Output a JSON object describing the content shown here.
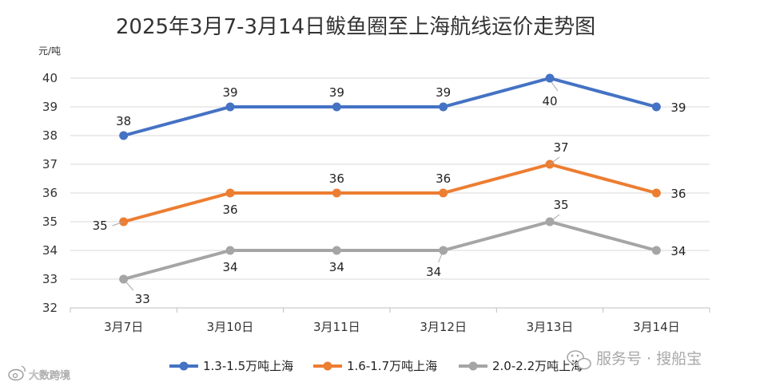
{
  "chart_data": {
    "type": "line",
    "title": "2025年3月7-3月14日鲅鱼圈至上海航线运价走势图",
    "ylabel": "元/吨",
    "xlabel": "",
    "categories": [
      "3月7日",
      "3月10日",
      "3月11日",
      "3月12日",
      "3月13日",
      "3月14日"
    ],
    "ylim": [
      32,
      40
    ],
    "yticks": [
      32,
      33,
      34,
      35,
      36,
      37,
      38,
      39,
      40
    ],
    "grid": true,
    "legend_position": "bottom",
    "series": [
      {
        "name": "1.3-1.5万吨上海",
        "color": "#4472C4",
        "values": [
          38,
          39,
          39,
          39,
          40,
          39
        ],
        "label_placement": [
          "above",
          "above",
          "above",
          "above",
          "below",
          "right"
        ]
      },
      {
        "name": "1.6-1.7万吨上海",
        "color": "#ED7D31",
        "values": [
          35,
          36,
          36,
          36,
          37,
          36
        ],
        "label_placement": [
          "left",
          "below",
          "above",
          "above",
          "above-right",
          "right"
        ]
      },
      {
        "name": "2.0-2.2万吨上海",
        "color": "#A5A5A5",
        "values": [
          33,
          34,
          34,
          34,
          35,
          34
        ],
        "label_placement": [
          "below-right",
          "below",
          "below",
          "below-left",
          "above-right",
          "right"
        ]
      }
    ]
  },
  "watermarks": {
    "right": "服务号 · 搜船宝",
    "right_icon": "wechat-icon",
    "left": "大数跨境",
    "left_icon": "weibo-icon"
  }
}
